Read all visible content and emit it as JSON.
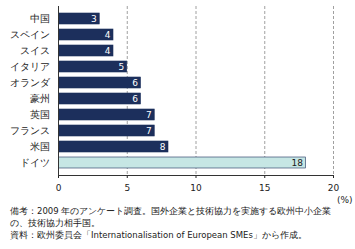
{
  "chart_data": {
    "type": "bar",
    "orientation": "horizontal",
    "categories": [
      "中国",
      "スペイン",
      "スイス",
      "イタリア",
      "オランダ",
      "豪州",
      "英国",
      "フランス",
      "米国",
      "ドイツ"
    ],
    "values": [
      3,
      4,
      4,
      5,
      6,
      6,
      7,
      7,
      8,
      18
    ],
    "colors": [
      "#1c2f5c",
      "#1c2f5c",
      "#1c2f5c",
      "#1c2f5c",
      "#1c2f5c",
      "#1c2f5c",
      "#1c2f5c",
      "#1c2f5c",
      "#1c2f5c",
      "#c6e6e4"
    ],
    "xlabel": "(%)",
    "xlim": [
      0,
      20
    ],
    "xticks": [
      0,
      5,
      10,
      15,
      20
    ],
    "grid": true,
    "data_labels": true,
    "notes": [
      "備考：2009 年のアンケート調査。国外企業と技術協力を実施する欧州中小企業の、技術協力相手国。",
      "資料：欧州委員会「Internationalisation of European SMEs」から作成。"
    ]
  }
}
